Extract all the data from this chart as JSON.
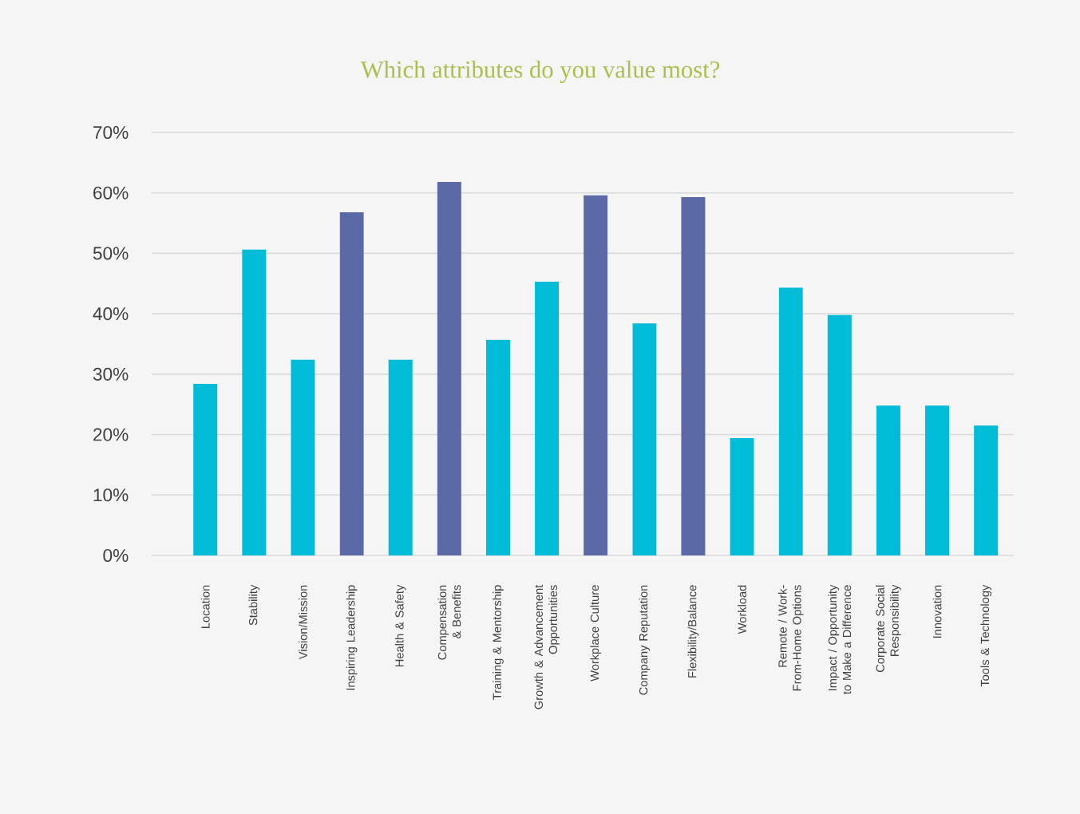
{
  "chart_data": {
    "type": "bar",
    "title": "Which attributes do you value most?",
    "categories": [
      "Location",
      "Stability",
      "Vision/Mission",
      "Inspiring Leadership",
      "Health & Safety",
      "Compensation & Benefits",
      "Training & Mentorship",
      "Growth & Advancement Opportunities",
      "Workplace Culture",
      "Company Reputation",
      "Flexibility/Balance",
      "Workload",
      "Remote / Work-From-Home Options",
      "Impact / Opportunity to Make a Difference",
      "Corporate Social Responsibility",
      "Innovation",
      "Tools & Technology"
    ],
    "values": [
      28.4,
      50.6,
      32.4,
      56.8,
      32.4,
      61.8,
      35.7,
      45.3,
      59.6,
      38.4,
      59.3,
      19.4,
      44.3,
      39.8,
      24.8,
      24.8,
      21.5
    ],
    "colors": [
      "#00bcd8",
      "#00bcd8",
      "#00bcd8",
      "#5b69a6",
      "#00bcd8",
      "#5b69a6",
      "#00bcd8",
      "#00bcd8",
      "#5b69a6",
      "#00bcd8",
      "#5b69a6",
      "#00bcd8",
      "#00bcd8",
      "#00bcd8",
      "#00bcd8",
      "#00bcd8",
      "#00bcd8"
    ],
    "ylim": [
      0,
      70
    ],
    "yticks": [
      {
        "value": 0,
        "label": "0%"
      },
      {
        "value": 10,
        "label": "10%"
      },
      {
        "value": 20,
        "label": "20%"
      },
      {
        "value": 30,
        "label": "30%"
      },
      {
        "value": 40,
        "label": "40%"
      },
      {
        "value": 50,
        "label": "50%"
      },
      {
        "value": 60,
        "label": "60%"
      },
      {
        "value": 70,
        "label": "70%"
      }
    ],
    "grid": "y"
  }
}
